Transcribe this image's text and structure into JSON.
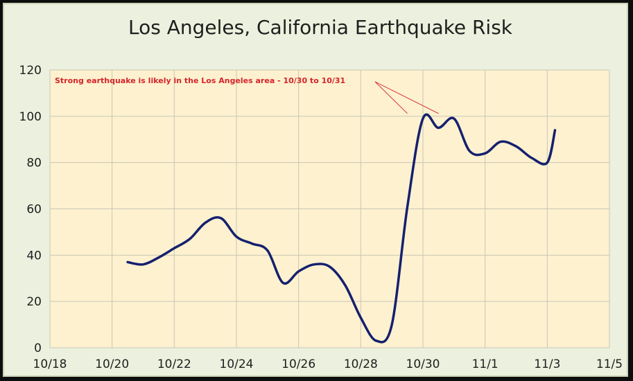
{
  "chart_data": {
    "type": "line",
    "title": "Los Angeles, California Earthquake Risk",
    "xlabel": "",
    "ylabel": "",
    "xlim": [
      "2023-10-18",
      "2023-11-05"
    ],
    "ylim": [
      0,
      120
    ],
    "x_tick_labels": [
      "10/18",
      "10/20",
      "10/22",
      "10/24",
      "10/26",
      "10/28",
      "10/30",
      "11/1",
      "11/3",
      "11/5"
    ],
    "y_tick_labels": [
      "0",
      "20",
      "40",
      "60",
      "80",
      "100",
      "120"
    ],
    "grid": true,
    "legend": "none",
    "colors": {
      "line": "#15206e",
      "plot_bg": "#fdf1cf",
      "frame_bg": "#ebf1de",
      "grid": "#c9c6b6",
      "annotation": "#d4252b"
    },
    "annotation": {
      "text": "Strong earthquake is likely in the Los Angeles area - 10/30 to 10/31",
      "targets": [
        {
          "x": "2023-10-29T12:00",
          "y": 100
        },
        {
          "x": "2023-10-30T12:00",
          "y": 100
        }
      ]
    },
    "series": [
      {
        "x": [
          "2023-10-20T12:00",
          "2023-10-21T00:00",
          "2023-10-21T12:00",
          "2023-10-22T00:00",
          "2023-10-22T12:00",
          "2023-10-23T00:00",
          "2023-10-23T12:00",
          "2023-10-24T00:00",
          "2023-10-24T12:00",
          "2023-10-25T00:00",
          "2023-10-25T12:00",
          "2023-10-26T00:00",
          "2023-10-26T12:00",
          "2023-10-27T00:00",
          "2023-10-27T12:00",
          "2023-10-28T00:00",
          "2023-10-28T12:00",
          "2023-10-29T00:00",
          "2023-10-29T12:00",
          "2023-10-30T00:00",
          "2023-10-30T12:00",
          "2023-10-31T00:00",
          "2023-10-31T12:00",
          "2023-11-01T00:00",
          "2023-11-01T12:00",
          "2023-11-02T00:00",
          "2023-11-02T12:00",
          "2023-11-03T00:00",
          "2023-11-03T06:00"
        ],
        "values": [
          37,
          36,
          39,
          43,
          47,
          54,
          56,
          48,
          45,
          42,
          28,
          33,
          36,
          35,
          27,
          13,
          3,
          10,
          61,
          99,
          95,
          99,
          85,
          84,
          89,
          87,
          82,
          80,
          94
        ]
      }
    ]
  }
}
